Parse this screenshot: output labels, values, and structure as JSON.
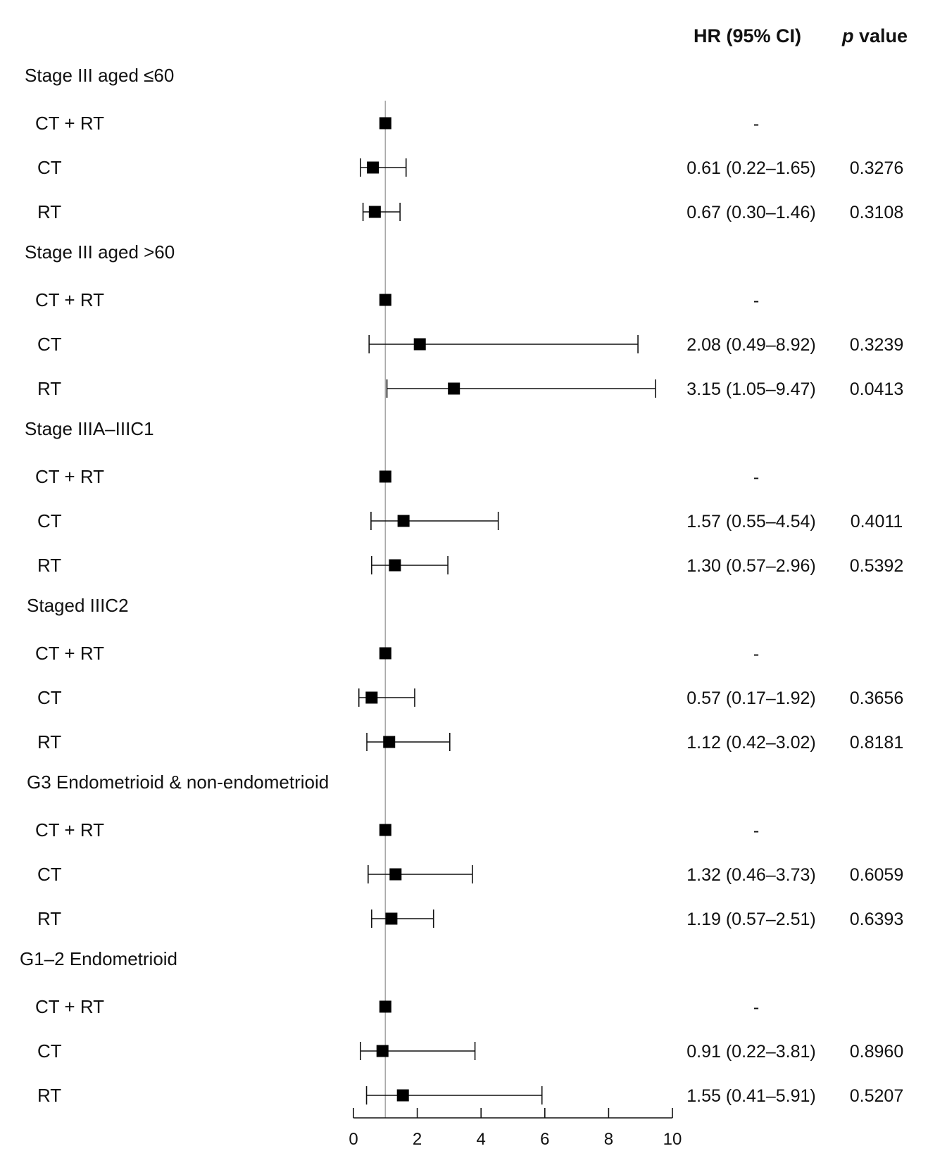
{
  "headers": {
    "hr": "HR (95% CI)",
    "p_italic": "p",
    "p_rest": " value"
  },
  "chart_data": {
    "type": "forest",
    "reference_line": 1,
    "xlim": [
      0,
      10
    ],
    "x_ticks": [
      0,
      2,
      4,
      6,
      8,
      10
    ],
    "groups": [
      {
        "label": "Stage III aged ≤60",
        "rows": [
          {
            "label": "CT + RT",
            "hr": 1,
            "lo": null,
            "hi": null,
            "ci_text": "-",
            "p": ""
          },
          {
            "label": "CT",
            "hr": 0.61,
            "lo": 0.22,
            "hi": 1.65,
            "ci_text": "0.61 (0.22–1.65)",
            "p": "0.3276"
          },
          {
            "label": "RT",
            "hr": 0.67,
            "lo": 0.3,
            "hi": 1.46,
            "ci_text": "0.67 (0.30–1.46)",
            "p": "0.3108"
          }
        ]
      },
      {
        "label": "Stage III aged >60",
        "rows": [
          {
            "label": "CT + RT",
            "hr": 1,
            "lo": null,
            "hi": null,
            "ci_text": "-",
            "p": ""
          },
          {
            "label": "CT",
            "hr": 2.08,
            "lo": 0.49,
            "hi": 8.92,
            "ci_text": "2.08 (0.49–8.92)",
            "p": "0.3239"
          },
          {
            "label": "RT",
            "hr": 3.15,
            "lo": 1.05,
            "hi": 9.47,
            "ci_text": "3.15 (1.05–9.47)",
            "p": "0.0413"
          }
        ]
      },
      {
        "label": "Stage IIIA–IIIC1",
        "rows": [
          {
            "label": "CT + RT",
            "hr": 1,
            "lo": null,
            "hi": null,
            "ci_text": "-",
            "p": ""
          },
          {
            "label": "CT",
            "hr": 1.57,
            "lo": 0.55,
            "hi": 4.54,
            "ci_text": "1.57 (0.55–4.54)",
            "p": "0.4011"
          },
          {
            "label": "RT",
            "hr": 1.3,
            "lo": 0.57,
            "hi": 2.96,
            "ci_text": "1.30 (0.57–2.96)",
            "p": "0.5392"
          }
        ]
      },
      {
        "label": "Staged IIIC2",
        "rows": [
          {
            "label": "CT + RT",
            "hr": 1,
            "lo": null,
            "hi": null,
            "ci_text": "-",
            "p": ""
          },
          {
            "label": "CT",
            "hr": 0.57,
            "lo": 0.17,
            "hi": 1.92,
            "ci_text": "0.57 (0.17–1.92)",
            "p": "0.3656"
          },
          {
            "label": "RT",
            "hr": 1.12,
            "lo": 0.42,
            "hi": 3.02,
            "ci_text": "1.12 (0.42–3.02)",
            "p": "0.8181"
          }
        ]
      },
      {
        "label": "G3 Endometrioid & non-endometrioid",
        "rows": [
          {
            "label": "CT + RT",
            "hr": 1,
            "lo": null,
            "hi": null,
            "ci_text": "-",
            "p": ""
          },
          {
            "label": "CT",
            "hr": 1.32,
            "lo": 0.46,
            "hi": 3.73,
            "ci_text": "1.32 (0.46–3.73)",
            "p": "0.6059"
          },
          {
            "label": "RT",
            "hr": 1.19,
            "lo": 0.57,
            "hi": 2.51,
            "ci_text": "1.19 (0.57–2.51)",
            "p": "0.6393"
          }
        ]
      },
      {
        "label": "G1–2 Endometrioid",
        "rows": [
          {
            "label": "CT + RT",
            "hr": 1,
            "lo": null,
            "hi": null,
            "ci_text": "-",
            "p": ""
          },
          {
            "label": "CT",
            "hr": 0.91,
            "lo": 0.22,
            "hi": 3.81,
            "ci_text": "0.91 (0.22–3.81)",
            "p": "0.8960"
          },
          {
            "label": "RT",
            "hr": 1.55,
            "lo": 0.41,
            "hi": 5.91,
            "ci_text": "1.55 (0.41–5.91)",
            "p": "0.5207"
          }
        ]
      }
    ]
  }
}
